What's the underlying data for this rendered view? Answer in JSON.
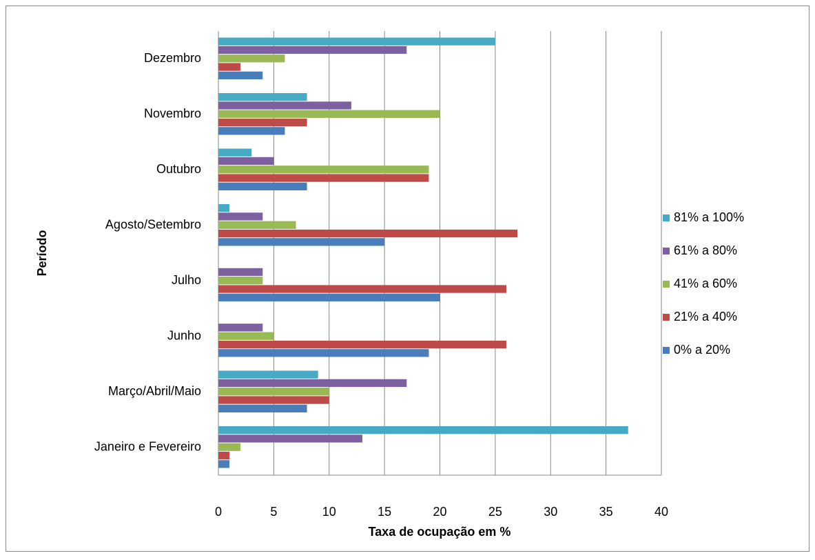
{
  "chart_data": {
    "type": "barh",
    "xlabel": "Taxa de ocupação em %",
    "ylabel": "Período",
    "categories": [
      "Janeiro e Fevereiro",
      "Março/Abril/Maio",
      "Junho",
      "Julho",
      "Agosto/Setembro",
      "Outubro",
      "Novembro",
      "Dezembro"
    ],
    "series": [
      {
        "name": "0% a 20%",
        "color": "#4a7ebb",
        "values": [
          1,
          8,
          19,
          20,
          15,
          8,
          6,
          4
        ]
      },
      {
        "name": "21% a 40%",
        "color": "#be4b48",
        "values": [
          1,
          10,
          26,
          26,
          27,
          19,
          8,
          2
        ]
      },
      {
        "name": "41% a 60%",
        "color": "#98b954",
        "values": [
          2,
          10,
          5,
          4,
          7,
          19,
          20,
          6
        ]
      },
      {
        "name": "61% a 80%",
        "color": "#7d60a0",
        "values": [
          13,
          17,
          4,
          4,
          4,
          5,
          12,
          17
        ]
      },
      {
        "name": "81% a 100%",
        "color": "#46aac5",
        "values": [
          37,
          9,
          0,
          0,
          1,
          3,
          8,
          25
        ]
      }
    ],
    "xlim": [
      0,
      40
    ],
    "xticks": [
      0,
      5,
      10,
      15,
      20,
      25,
      30,
      35,
      40
    ],
    "grid": true,
    "legend": "right"
  }
}
